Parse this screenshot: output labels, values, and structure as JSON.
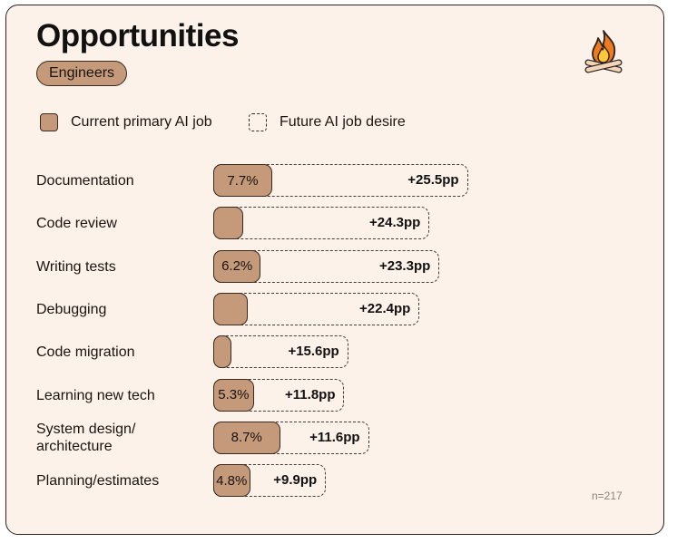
{
  "header": {
    "title": "Opportunities",
    "badge": "Engineers"
  },
  "legend": {
    "current": "Current primary AI job",
    "future": "Future AI job desire"
  },
  "logo": {
    "icon": "campfire-icon"
  },
  "colors": {
    "current_fill": "#c49a7a",
    "border": "#3a2a20",
    "background": "#fdf2e9"
  },
  "note": "n=217",
  "chart_data": {
    "type": "bar",
    "orientation": "horizontal",
    "categories": [
      "Documentation",
      "Code review",
      "Writing tests",
      "Debugging",
      "Code migration",
      "Learning new tech",
      "System design/\narchitecture",
      "Planning/estimates"
    ],
    "series": [
      {
        "name": "Current primary AI job",
        "values": [
          7.7,
          3.9,
          6.2,
          4.5,
          2.0,
          5.3,
          8.7,
          4.8
        ],
        "labels": [
          "7.7%",
          "",
          "6.2%",
          "",
          "",
          "5.3%",
          "8.7%",
          "4.8%"
        ]
      },
      {
        "name": "Future AI job desire",
        "diff_values": [
          25.5,
          24.3,
          23.3,
          22.4,
          15.6,
          11.8,
          11.6,
          9.9
        ],
        "diff_labels": [
          "+25.5pp",
          "+24.3pp",
          "+23.3pp",
          "+22.4pp",
          "+15.6pp",
          "+11.8pp",
          "+11.6pp",
          "+9.9pp"
        ]
      }
    ]
  }
}
